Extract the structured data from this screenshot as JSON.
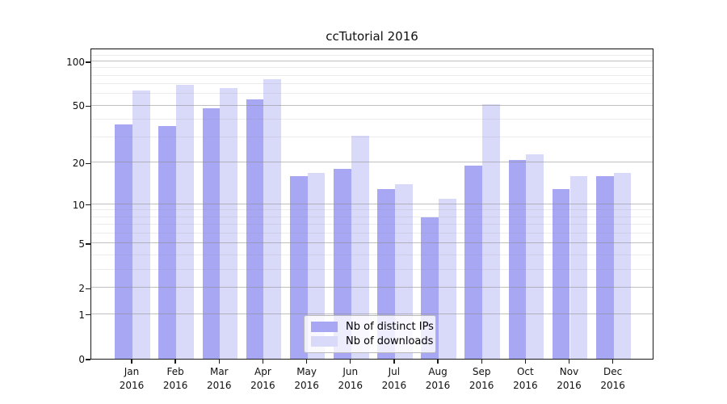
{
  "title": "ccTutorial 2016",
  "chart_data": {
    "type": "bar",
    "title": "ccTutorial 2016",
    "categories": [
      "Jan 2016",
      "Feb 2016",
      "Mar 2016",
      "Apr 2016",
      "May 2016",
      "Jun 2016",
      "Jul 2016",
      "Aug 2016",
      "Sep 2016",
      "Oct 2016",
      "Nov 2016",
      "Dec 2016"
    ],
    "series": [
      {
        "name": "Nb of distinct IPs",
        "color": "#a7a7f4",
        "values": [
          37,
          36,
          48,
          55,
          16,
          18,
          13,
          8,
          19,
          21,
          13,
          16
        ]
      },
      {
        "name": "Nb of downloads",
        "color": "#d9d9f9",
        "values": [
          63,
          69,
          66,
          76,
          17,
          31,
          14,
          11,
          51,
          23,
          16,
          17
        ]
      }
    ],
    "xlabel": "",
    "ylabel": "",
    "yscale": "log1p",
    "ylim": [
      0,
      124
    ],
    "y_major_ticks": [
      0,
      1,
      2,
      5,
      10,
      20,
      50,
      100
    ],
    "y_minor_gridlines": [
      3,
      4,
      6,
      7,
      8,
      9,
      30,
      40,
      60,
      70,
      80,
      90,
      110,
      120
    ],
    "grid": true,
    "legend_position": "lower-center-inside"
  }
}
